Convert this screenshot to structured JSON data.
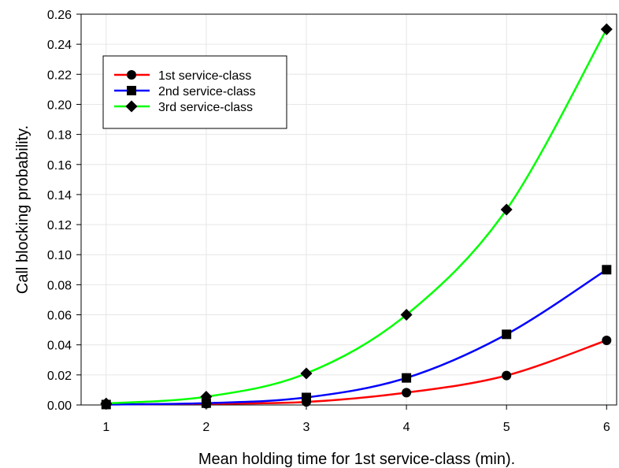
{
  "chart_data": {
    "type": "line",
    "title": "",
    "xlabel": "Mean holding time for 1st service-class (min).",
    "ylabel": "Call blocking probability.",
    "x": [
      1,
      2,
      3,
      4,
      5,
      6
    ],
    "xlim": [
      0.75,
      6.1
    ],
    "ylim": [
      0,
      0.26
    ],
    "x_ticks": [
      "1",
      "2",
      "3",
      "4",
      "5",
      "6"
    ],
    "y_ticks": [
      "0.00",
      "0.02",
      "0.04",
      "0.06",
      "0.08",
      "0.10",
      "0.12",
      "0.14",
      "0.16",
      "0.18",
      "0.20",
      "0.22",
      "0.24",
      "0.26"
    ],
    "grid": true,
    "legend_position": "top-left",
    "series": [
      {
        "name": "1st service-class",
        "color": "#ff0000",
        "marker": "circle",
        "values": [
          0.0003,
          0.0008,
          0.002,
          0.0082,
          0.0196,
          0.043
        ]
      },
      {
        "name": "2nd service-class",
        "color": "#0000ff",
        "marker": "square",
        "values": [
          0.0003,
          0.0012,
          0.005,
          0.018,
          0.047,
          0.09
        ]
      },
      {
        "name": "3rd service-class",
        "color": "#00ff00",
        "marker": "diamond",
        "values": [
          0.001,
          0.0055,
          0.021,
          0.06,
          0.13,
          0.25
        ]
      }
    ]
  }
}
